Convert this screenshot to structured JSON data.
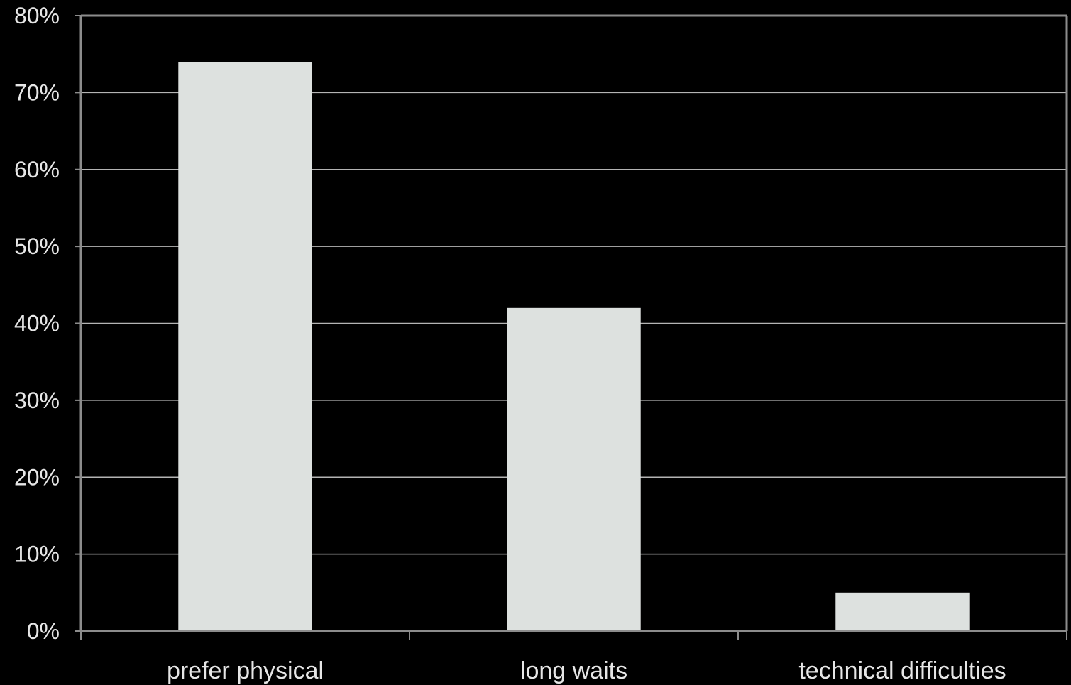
{
  "chart_data": {
    "type": "bar",
    "title": "",
    "xlabel": "",
    "ylabel": "",
    "categories": [
      "prefer physical",
      "long waits",
      "technical difficulties"
    ],
    "values": [
      0.74,
      0.42,
      0.05
    ],
    "ylim": [
      0,
      0.8
    ],
    "yticks": [
      "0%",
      "10%",
      "20%",
      "30%",
      "40%",
      "50%",
      "60%",
      "70%",
      "80%"
    ],
    "grid": true,
    "legend": "none",
    "colors": {
      "background": "#000000",
      "bar": "#dde1df",
      "grid": "#b4b4b4",
      "axis": "#8c8c8c",
      "text": "#e6e6e6"
    }
  }
}
